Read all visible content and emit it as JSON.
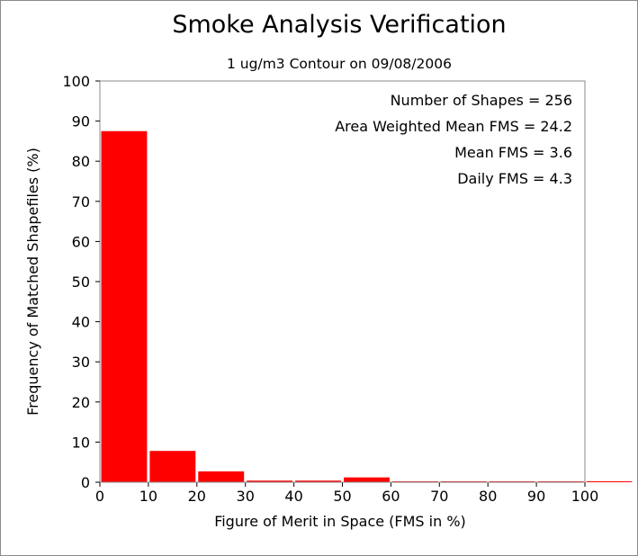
{
  "chart_data": {
    "type": "bar",
    "title": "Smoke Analysis Verification",
    "subtitle": "1 ug/m3 Contour on 09/08/2006",
    "xlabel": "Figure of Merit in Space (FMS in %)",
    "ylabel": "Frequency of Matched Shapefiles (%)",
    "xlim": [
      0,
      100
    ],
    "ylim": [
      0,
      100
    ],
    "x_ticks": [
      "0",
      "10",
      "20",
      "30",
      "40",
      "50",
      "60",
      "70",
      "80",
      "90",
      "100"
    ],
    "y_ticks": [
      "0",
      "10",
      "20",
      "30",
      "40",
      "50",
      "60",
      "70",
      "80",
      "90",
      "100"
    ],
    "bins": [
      [
        0,
        10
      ],
      [
        10,
        20
      ],
      [
        20,
        30
      ],
      [
        30,
        40
      ],
      [
        40,
        50
      ],
      [
        50,
        60
      ],
      [
        60,
        70
      ],
      [
        70,
        80
      ],
      [
        80,
        90
      ],
      [
        90,
        100
      ],
      [
        100,
        110
      ]
    ],
    "values": [
      87.5,
      7.8,
      2.7,
      0.4,
      0.4,
      1.2,
      0,
      0,
      0,
      0,
      0
    ],
    "bar_color": "#ff0000",
    "grid": false,
    "annotations": [
      "Number of Shapes = 256",
      "Area Weighted Mean FMS = 24.2",
      "Mean FMS = 3.6",
      "Daily FMS = 4.3"
    ]
  }
}
